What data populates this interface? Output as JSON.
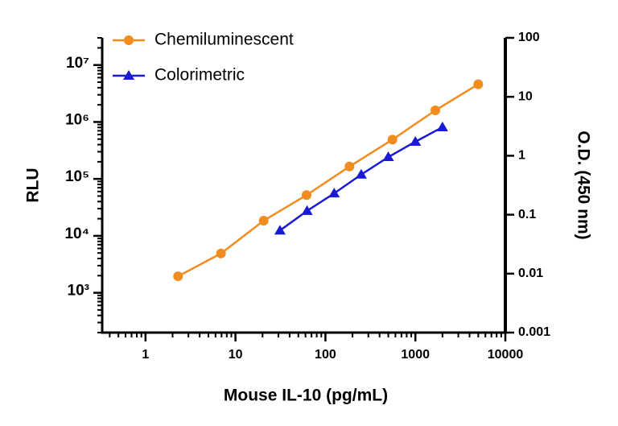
{
  "chart_data": {
    "type": "line",
    "xlabel": "Mouse IL-10 (pg/mL)",
    "ylabel": "RLU",
    "y2label": "O.D. (450 nm)",
    "xscale": "log",
    "yscale": "log",
    "y2scale": "log",
    "xlim": [
      0.33,
      10000
    ],
    "xticks": [
      1,
      10,
      100,
      1000,
      10000
    ],
    "ylim": [
      200,
      30000000
    ],
    "yticks": [
      {
        "value": 1000,
        "label": "10³"
      },
      {
        "value": 10000,
        "label": "10⁴"
      },
      {
        "value": 100000,
        "label": "10⁵"
      },
      {
        "value": 1000000,
        "label": "10⁶"
      },
      {
        "value": 10000000,
        "label": "10⁷"
      }
    ],
    "y2lim": [
      0.001,
      100
    ],
    "y2ticks": [
      0.001,
      0.01,
      0.1,
      1,
      10,
      100
    ],
    "legend": "upper left",
    "series": [
      {
        "name": "Chemiluminescent",
        "color": "#f28c1e",
        "marker": "circle",
        "x": [
          2.3,
          6.9,
          20.6,
          61.7,
          185,
          556,
          1667,
          5000
        ],
        "values": [
          1950,
          4900,
          18500,
          52000,
          165000,
          490000,
          1600000,
          4600000
        ]
      },
      {
        "name": "Colorimetric",
        "color": "#1a1ad6",
        "marker": "triangle",
        "axis": "y2",
        "x": [
          31.25,
          62.5,
          125,
          250,
          500,
          1000,
          2000
        ],
        "values": [
          0.054,
          0.116,
          0.23,
          0.48,
          0.95,
          1.73,
          3.05
        ]
      }
    ]
  }
}
